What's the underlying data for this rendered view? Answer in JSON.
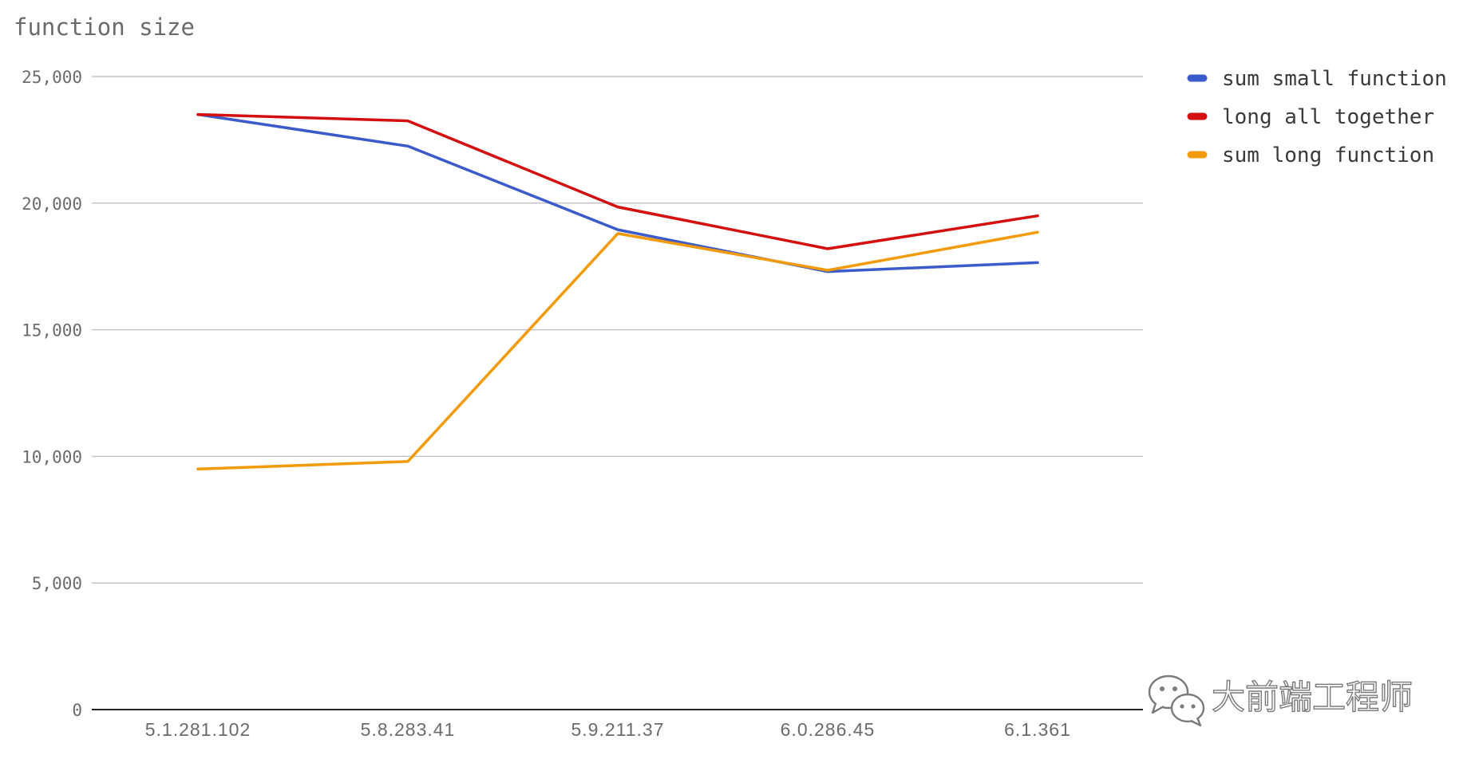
{
  "chart_data": {
    "type": "line",
    "title": "function size",
    "xlabel": "",
    "ylabel": "",
    "categories": [
      "5.1.281.102",
      "5.8.283.41",
      "5.9.211.37",
      "6.0.286.45",
      "6.1.361"
    ],
    "ylim": [
      0,
      25000
    ],
    "yticks": [
      0,
      5000,
      10000,
      15000,
      20000,
      25000
    ],
    "ytick_labels": [
      "0",
      "5,000",
      "10,000",
      "15,000",
      "20,000",
      "25,000"
    ],
    "grid": true,
    "legend_position": "top-right",
    "series": [
      {
        "name": "sum small function",
        "color": "#3b5bcb",
        "values": [
          23500,
          22250,
          18950,
          17300,
          17650
        ]
      },
      {
        "name": "long all together",
        "color": "#d40f0f",
        "values": [
          23500,
          23250,
          19850,
          18200,
          19500
        ]
      },
      {
        "name": "sum long function",
        "color": "#f29a07",
        "values": [
          9500,
          9800,
          18800,
          17350,
          18850
        ]
      }
    ]
  },
  "watermark": {
    "text": "大前端工程师",
    "icon": "wechat-icon"
  }
}
